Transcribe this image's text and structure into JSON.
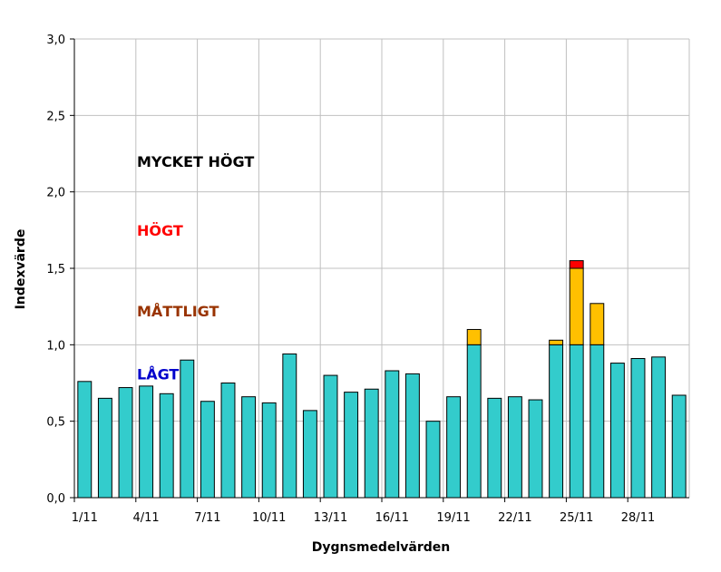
{
  "chart_data": {
    "type": "bar",
    "stacked": true,
    "xlabel": "Dygnsmedelvärden",
    "ylabel": "Indexvärde",
    "ylim": [
      0,
      3
    ],
    "ytick_step": 0.5,
    "ytick_labels": [
      "0,0",
      "0,5",
      "1,0",
      "1,5",
      "2,0",
      "2,5",
      "3,0"
    ],
    "grid": "both",
    "days": [
      1,
      2,
      3,
      4,
      5,
      6,
      7,
      8,
      9,
      10,
      11,
      12,
      13,
      14,
      15,
      16,
      17,
      18,
      19,
      20,
      21,
      22,
      23,
      24,
      25,
      26,
      27,
      28,
      29,
      30
    ],
    "xtick_labels": [
      "1/11",
      "4/11",
      "7/11",
      "10/11",
      "13/11",
      "16/11",
      "19/11",
      "22/11",
      "25/11",
      "28/11"
    ],
    "xtick_days": [
      1,
      4,
      7,
      10,
      13,
      16,
      19,
      22,
      25,
      28
    ],
    "series": [
      {
        "level": "LÅGT",
        "color": "#33cccc",
        "values": [
          0.76,
          0.65,
          0.72,
          0.73,
          0.68,
          0.9,
          0.63,
          0.75,
          0.66,
          0.62,
          0.94,
          0.57,
          0.8,
          0.69,
          0.71,
          0.83,
          0.81,
          0.5,
          0.66,
          1.0,
          0.65,
          0.66,
          0.64,
          1.0,
          1.0,
          1.0,
          0.88,
          0.91,
          0.92,
          0.67
        ]
      },
      {
        "level": "MÅTTLIGT",
        "color": "#ffc000",
        "values": [
          0,
          0,
          0,
          0,
          0,
          0,
          0,
          0,
          0,
          0,
          0,
          0,
          0,
          0,
          0,
          0,
          0,
          0,
          0,
          0.1,
          0,
          0,
          0,
          0.03,
          0.5,
          0.27,
          0,
          0,
          0,
          0
        ]
      },
      {
        "level": "HÖGT",
        "color": "#ff0000",
        "values": [
          0,
          0,
          0,
          0,
          0,
          0,
          0,
          0,
          0,
          0,
          0,
          0,
          0,
          0,
          0,
          0,
          0,
          0,
          0,
          0,
          0,
          0,
          0,
          0,
          0.05,
          0,
          0,
          0,
          0,
          0
        ]
      }
    ],
    "level_labels": [
      {
        "text": "MYCKET HÖGT",
        "color": "#000000",
        "y": 2.2
      },
      {
        "text": "HÖGT",
        "color": "#ff0000",
        "y": 1.75
      },
      {
        "text": "MÅTTLIGT",
        "color": "#993300",
        "y": 1.22
      },
      {
        "text": "LÅGT",
        "color": "#0000cc",
        "y": 0.81
      }
    ],
    "colors": {
      "grid": "#c0c0c0",
      "bar_border": "#000000",
      "axis": "#000000"
    }
  }
}
